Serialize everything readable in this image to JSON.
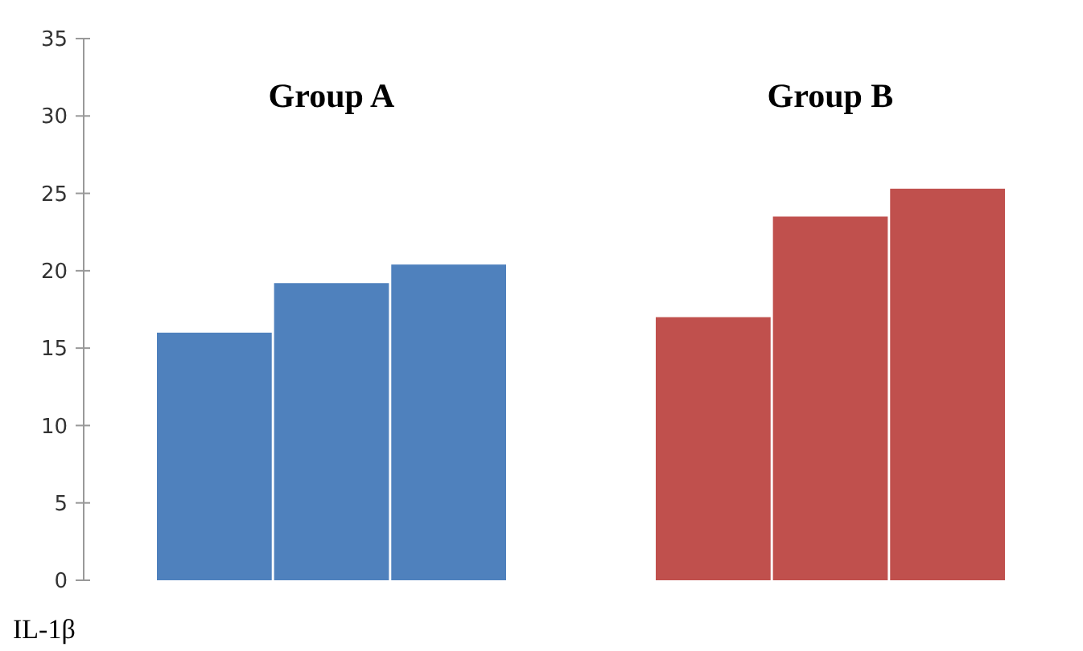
{
  "chart_data": {
    "type": "bar",
    "ylabel": "IL-1β",
    "categories": [
      "Group A",
      "Group B"
    ],
    "series": [
      {
        "colors": [
          "#4f81bd",
          "#c0504d"
        ],
        "values": [
          16,
          17
        ]
      },
      {
        "colors": [
          "#4f81bd",
          "#c0504d"
        ],
        "values": [
          19.2,
          23.5
        ]
      },
      {
        "colors": [
          "#4f81bd",
          "#c0504d"
        ],
        "values": [
          20.4,
          25.3
        ]
      }
    ],
    "ylim": [
      0,
      35
    ],
    "yticks": [
      0,
      5,
      10,
      15,
      20,
      25,
      30,
      35
    ],
    "grid": false
  }
}
